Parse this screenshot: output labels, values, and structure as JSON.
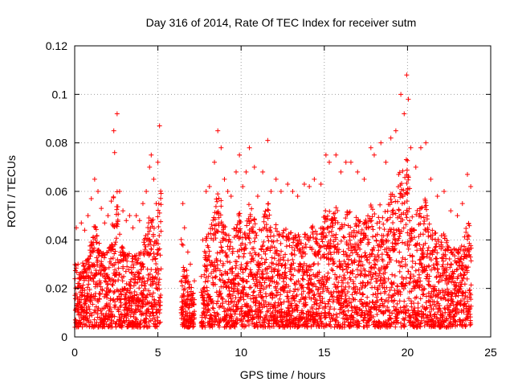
{
  "chart_data": {
    "type": "scatter",
    "title": "Day 316 of 2014, Rate Of TEC Index for receiver sutm",
    "xlabel": "GPS time / hours",
    "ylabel": "ROTI / TECUs",
    "xlim": [
      0,
      25
    ],
    "ylim": [
      0,
      0.12
    ],
    "xticks": [
      0,
      5,
      10,
      15,
      20,
      25
    ],
    "xtick_labels": [
      "0",
      "5",
      "10",
      "15",
      "20",
      "25"
    ],
    "yticks": [
      0,
      0.02,
      0.04,
      0.06,
      0.08,
      0.1,
      0.12
    ],
    "ytick_labels": [
      "0",
      "0.02",
      "0.04",
      "0.06",
      "0.08",
      "0.1",
      "0.12"
    ],
    "grid": true,
    "marker": "plus",
    "marker_color": "#ff0000",
    "data_gaps_hours": [
      [
        5.2,
        6.4
      ],
      [
        7.2,
        7.6
      ]
    ],
    "series": [
      {
        "name": "ROTI",
        "points": [
          [
            0.1,
            0.045
          ],
          [
            0.2,
            0.03
          ],
          [
            0.4,
            0.047
          ],
          [
            0.6,
            0.044
          ],
          [
            0.8,
            0.05
          ],
          [
            1.0,
            0.057
          ],
          [
            1.2,
            0.065
          ],
          [
            1.4,
            0.06
          ],
          [
            1.6,
            0.053
          ],
          [
            1.8,
            0.047
          ],
          [
            2.0,
            0.05
          ],
          [
            2.2,
            0.056
          ],
          [
            2.35,
            0.085
          ],
          [
            2.4,
            0.076
          ],
          [
            2.55,
            0.092
          ],
          [
            2.7,
            0.06
          ],
          [
            2.9,
            0.052
          ],
          [
            3.1,
            0.048
          ],
          [
            3.3,
            0.05
          ],
          [
            3.5,
            0.045
          ],
          [
            3.7,
            0.05
          ],
          [
            3.9,
            0.048
          ],
          [
            4.1,
            0.055
          ],
          [
            4.3,
            0.06
          ],
          [
            4.5,
            0.07
          ],
          [
            4.6,
            0.075
          ],
          [
            4.75,
            0.065
          ],
          [
            4.9,
            0.055
          ],
          [
            5.0,
            0.072
          ],
          [
            5.1,
            0.087
          ],
          [
            6.5,
            0.055
          ],
          [
            6.6,
            0.045
          ],
          [
            6.8,
            0.035
          ],
          [
            6.95,
            0.03
          ],
          [
            7.7,
            0.04
          ],
          [
            7.9,
            0.06
          ],
          [
            8.1,
            0.062
          ],
          [
            8.4,
            0.072
          ],
          [
            8.6,
            0.085
          ],
          [
            8.8,
            0.078
          ],
          [
            9.0,
            0.065
          ],
          [
            9.2,
            0.06
          ],
          [
            9.4,
            0.058
          ],
          [
            9.7,
            0.068
          ],
          [
            9.9,
            0.075
          ],
          [
            10.1,
            0.062
          ],
          [
            10.3,
            0.068
          ],
          [
            10.5,
            0.078
          ],
          [
            10.8,
            0.07
          ],
          [
            11.0,
            0.058
          ],
          [
            11.3,
            0.068
          ],
          [
            11.6,
            0.081
          ],
          [
            11.8,
            0.06
          ],
          [
            12.1,
            0.065
          ],
          [
            12.4,
            0.06
          ],
          [
            12.8,
            0.063
          ],
          [
            13.1,
            0.06
          ],
          [
            13.4,
            0.058
          ],
          [
            13.8,
            0.063
          ],
          [
            14.1,
            0.062
          ],
          [
            14.4,
            0.065
          ],
          [
            14.8,
            0.063
          ],
          [
            15.1,
            0.075
          ],
          [
            15.3,
            0.072
          ],
          [
            15.7,
            0.075
          ],
          [
            16.0,
            0.068
          ],
          [
            16.3,
            0.072
          ],
          [
            16.6,
            0.072
          ],
          [
            17.0,
            0.068
          ],
          [
            17.4,
            0.065
          ],
          [
            17.8,
            0.078
          ],
          [
            18.0,
            0.075
          ],
          [
            18.4,
            0.08
          ],
          [
            18.7,
            0.072
          ],
          [
            19.0,
            0.082
          ],
          [
            19.3,
            0.085
          ],
          [
            19.6,
            0.1
          ],
          [
            19.8,
            0.092
          ],
          [
            19.95,
            0.108
          ],
          [
            20.05,
            0.098
          ],
          [
            20.2,
            0.078
          ],
          [
            20.5,
            0.07
          ],
          [
            20.8,
            0.078
          ],
          [
            21.1,
            0.08
          ],
          [
            21.4,
            0.065
          ],
          [
            21.8,
            0.058
          ],
          [
            22.2,
            0.06
          ],
          [
            22.6,
            0.052
          ],
          [
            23.0,
            0.05
          ],
          [
            23.3,
            0.055
          ],
          [
            23.6,
            0.067
          ],
          [
            23.8,
            0.062
          ]
        ]
      }
    ]
  }
}
